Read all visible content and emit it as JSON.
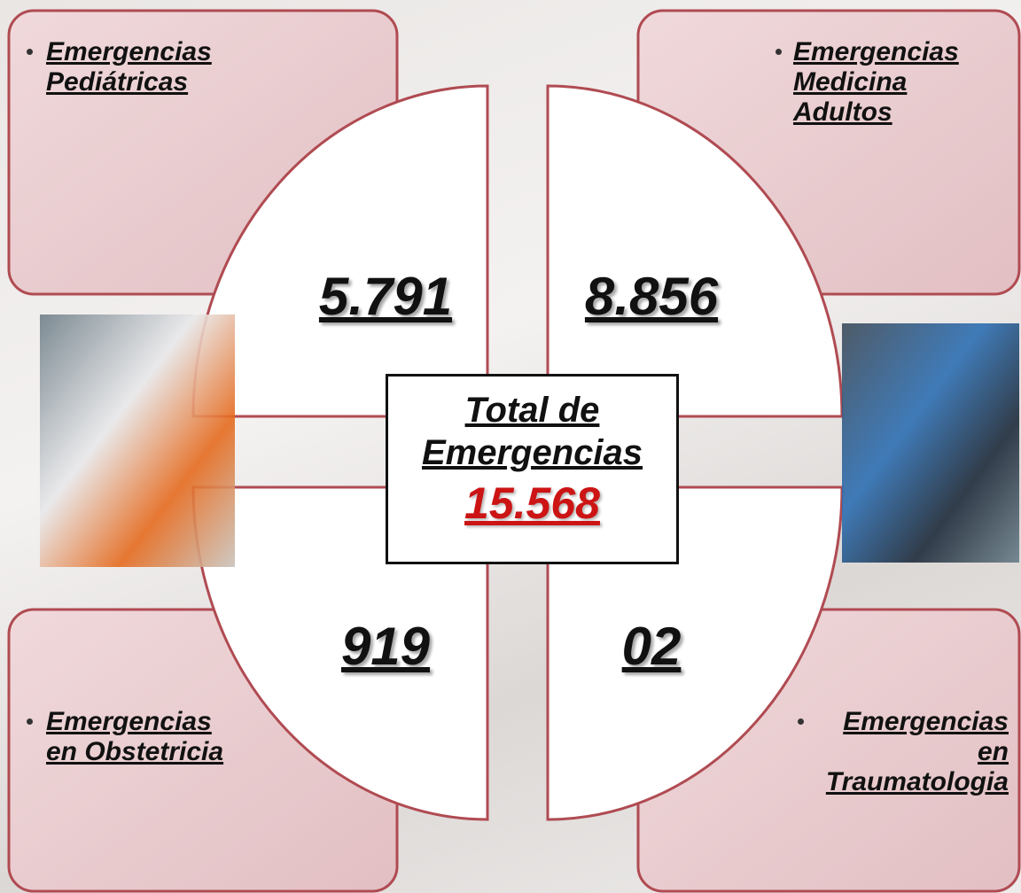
{
  "total": {
    "title_lines": [
      "Total de",
      "Emergencias"
    ],
    "value": "15.568"
  },
  "quadrants": [
    {
      "label_lines": [
        "Emergencias",
        "Pediátricas"
      ],
      "value": "5.791"
    },
    {
      "label_lines": [
        "Emergencias",
        "Medicina",
        "Adultos"
      ],
      "value": "8.856"
    },
    {
      "label_lines": [
        "Emergencias",
        "en Obstetricia"
      ],
      "value": "919"
    },
    {
      "label_lines": [
        "Emergencias",
        "en",
        "Traumatologia"
      ],
      "value": "02"
    }
  ]
}
